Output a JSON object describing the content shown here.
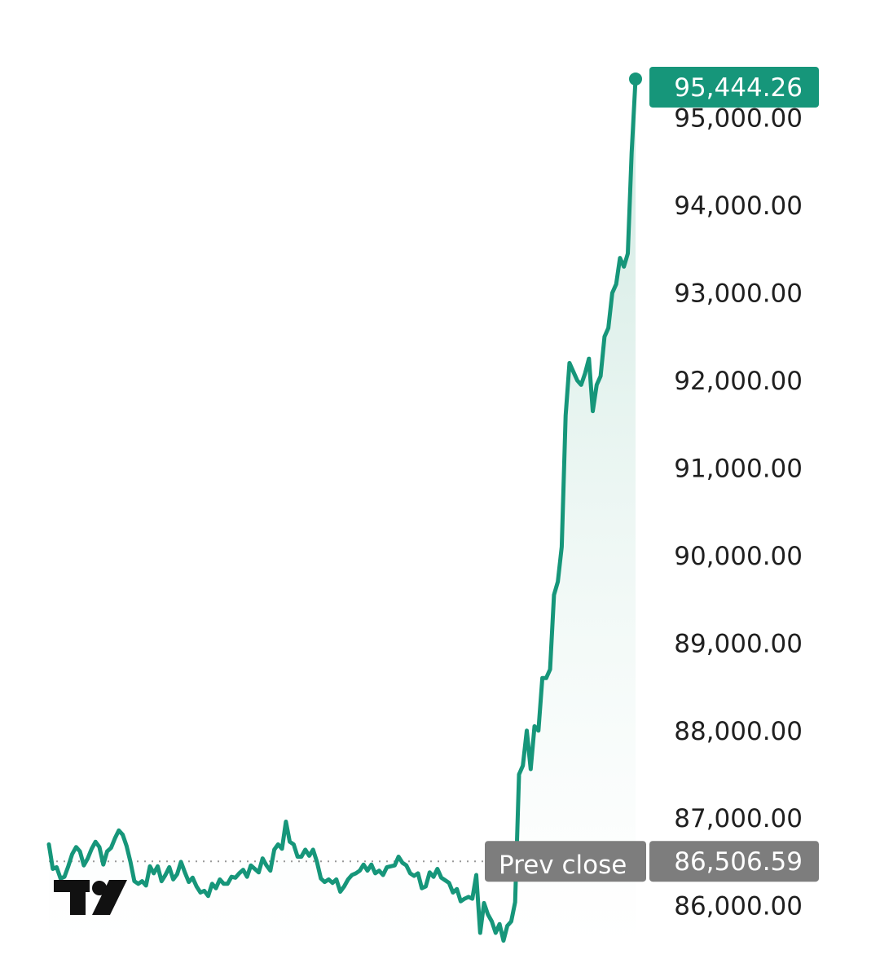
{
  "chart_data": {
    "type": "area",
    "title": "",
    "xlabel": "",
    "ylabel": "",
    "ylim": [
      85550,
      95900
    ],
    "y_ticks": [
      95000,
      94000,
      93000,
      92000,
      91000,
      90000,
      89000,
      88000,
      87000,
      86000
    ],
    "y_tick_labels": [
      "95,000.00",
      "94,000.00",
      "93,000.00",
      "92,000.00",
      "91,000.00",
      "90,000.00",
      "89,000.00",
      "88,000.00",
      "87,000.00",
      "86,000.00"
    ],
    "grid": false,
    "legend": "none",
    "series": [
      {
        "values": [
          86700,
          86420,
          86440,
          86310,
          86330,
          86450,
          86590,
          86670,
          86620,
          86460,
          86540,
          86650,
          86730,
          86670,
          86470,
          86620,
          86660,
          86770,
          86860,
          86810,
          86680,
          86500,
          86280,
          86250,
          86280,
          86230,
          86450,
          86370,
          86450,
          86280,
          86350,
          86440,
          86300,
          86360,
          86500,
          86380,
          86270,
          86320,
          86220,
          86150,
          86170,
          86110,
          86250,
          86200,
          86300,
          86250,
          86250,
          86330,
          86320,
          86370,
          86410,
          86330,
          86460,
          86420,
          86380,
          86540,
          86460,
          86400,
          86640,
          86700,
          86650,
          86960,
          86730,
          86700,
          86560,
          86560,
          86640,
          86570,
          86640,
          86500,
          86310,
          86270,
          86300,
          86260,
          86300,
          86160,
          86220,
          86300,
          86350,
          86370,
          86400,
          86470,
          86400,
          86470,
          86370,
          86400,
          86350,
          86440,
          86450,
          86460,
          86560,
          86490,
          86460,
          86370,
          86340,
          86370,
          86200,
          86220,
          86380,
          86330,
          86420,
          86320,
          86290,
          86260,
          86150,
          86190,
          86050,
          86080,
          86100,
          86080,
          86350,
          85690,
          86030,
          85900,
          85820,
          85690,
          85790,
          85600,
          85770,
          85820,
          86040,
          87500,
          87600,
          88000,
          87560,
          88050,
          88000,
          88600,
          88600,
          88700,
          89550,
          89700,
          90100,
          91600,
          92200,
          92100,
          92000,
          91950,
          92080,
          92250,
          91650,
          91950,
          92050,
          92500,
          92600,
          93000,
          93100,
          93400,
          93300,
          93450,
          94600,
          95444.26
        ]
      }
    ],
    "last_value": 95444.26,
    "last_value_label": "95,444.26",
    "prev_close": 86506.59,
    "prev_close_label": "86,506.59",
    "prev_close_text": "Prev close",
    "colors": {
      "line": "#16967a",
      "area_top": "#cfe9e1",
      "badge_last": "#16967a",
      "badge_prev": "#7d7d7d",
      "logo": "#111111"
    }
  }
}
